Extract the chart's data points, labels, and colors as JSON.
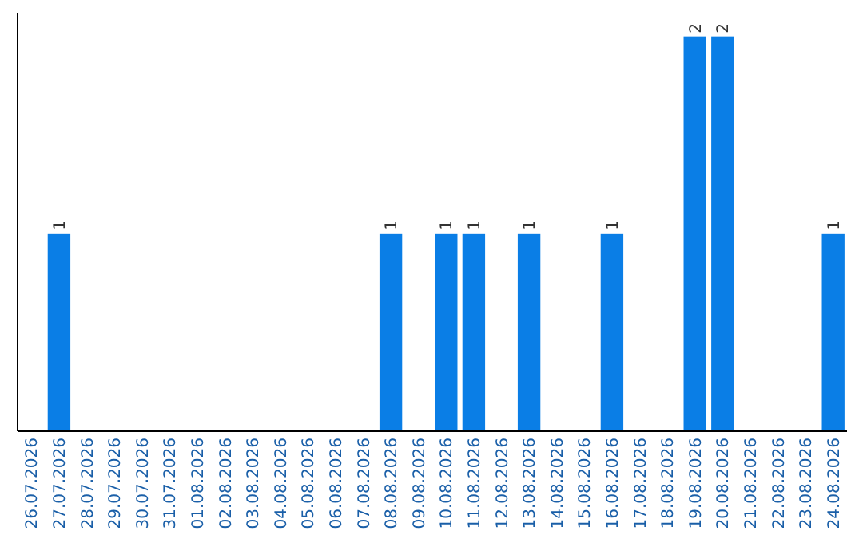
{
  "chart_data": {
    "type": "bar",
    "categories": [
      "26.07.2026",
      "27.07.2026",
      "28.07.2026",
      "29.07.2026",
      "30.07.2026",
      "31.07.2026",
      "01.08.2026",
      "02.08.2026",
      "03.08.2026",
      "04.08.2026",
      "05.08.2026",
      "06.08.2026",
      "07.08.2026",
      "08.08.2026",
      "09.08.2026",
      "10.08.2026",
      "11.08.2026",
      "12.08.2026",
      "13.08.2026",
      "14.08.2026",
      "15.08.2026",
      "16.08.2026",
      "17.08.2026",
      "18.08.2026",
      "19.08.2026",
      "20.08.2026",
      "21.08.2026",
      "22.08.2026",
      "23.08.2026",
      "24.08.2026"
    ],
    "values": [
      0,
      1,
      0,
      0,
      0,
      0,
      0,
      0,
      0,
      0,
      0,
      0,
      0,
      1,
      0,
      1,
      1,
      0,
      1,
      0,
      0,
      1,
      0,
      0,
      2,
      2,
      0,
      0,
      0,
      1
    ],
    "value_labels": [
      null,
      "1",
      null,
      null,
      null,
      null,
      null,
      null,
      null,
      null,
      null,
      null,
      null,
      "1",
      null,
      "1",
      "1",
      null,
      "1",
      null,
      null,
      "1",
      null,
      null,
      "2",
      "2",
      null,
      null,
      null,
      "1"
    ],
    "color": "#0a7ee6"
  }
}
